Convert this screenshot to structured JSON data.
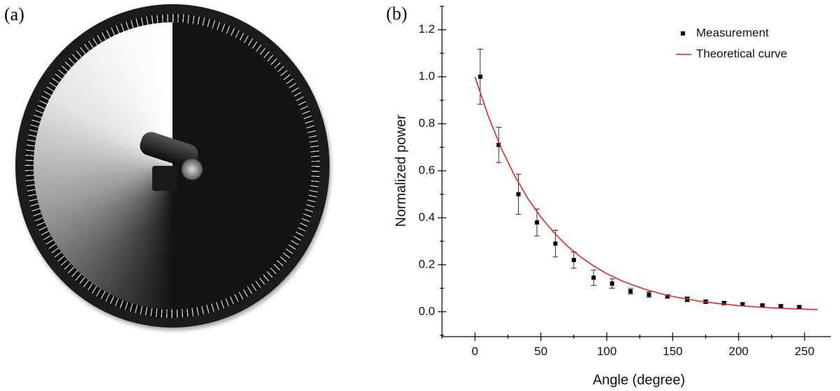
{
  "photo": {
    "label": "(a)"
  },
  "chart_data": {
    "type": "scatter",
    "panel_label": "(b)",
    "x_label": "Angle (degree)",
    "y_label": "Normalized power",
    "xlim": [
      -25,
      270
    ],
    "ylim": [
      -0.1,
      1.3
    ],
    "xticks": [
      0,
      50,
      100,
      150,
      200,
      250
    ],
    "xminorticks": [
      -25,
      25,
      75,
      125,
      175,
      225
    ],
    "yticks": [
      {
        "value": 0,
        "label": "0.0"
      },
      0.2,
      0.4,
      0.6,
      0.8,
      {
        "value": 1,
        "label": "1.0"
      },
      1.2
    ],
    "yminorticks": [
      -0.1,
      0.1,
      0.3,
      0.5,
      0.7,
      0.9,
      1.1,
      1.3
    ],
    "legend": "upper right",
    "series": [
      {
        "name": "Measurement",
        "type": "scatter",
        "color": "#000000",
        "x": [
          4,
          18,
          33,
          47,
          61,
          75,
          90,
          104,
          118,
          132,
          146,
          161,
          175,
          189,
          203,
          218,
          232,
          246
        ],
        "values": [
          1.0,
          0.71,
          0.5,
          0.38,
          0.29,
          0.22,
          0.145,
          0.12,
          0.087,
          0.073,
          0.065,
          0.053,
          0.043,
          0.037,
          0.032,
          0.027,
          0.024,
          0.02
        ],
        "errors": [
          0.117,
          0.075,
          0.085,
          0.057,
          0.057,
          0.035,
          0.033,
          0.02,
          0.012,
          0.012,
          0.007,
          0.01,
          0.008,
          0.007,
          0.006,
          0.005,
          0.005,
          0.005
        ]
      },
      {
        "name": "Theoretical curve",
        "type": "line",
        "color": "#e8231f",
        "x": [
          0,
          10,
          20,
          30,
          40,
          50,
          60,
          70,
          80,
          90,
          100,
          110,
          120,
          130,
          140,
          150,
          160,
          170,
          180,
          190,
          200,
          210,
          220,
          230,
          240,
          250,
          260
        ],
        "values": [
          1.0,
          0.834,
          0.695,
          0.58,
          0.483,
          0.403,
          0.336,
          0.28,
          0.234,
          0.195,
          0.162,
          0.135,
          0.113,
          0.094,
          0.078,
          0.065,
          0.055,
          0.045,
          0.038,
          0.032,
          0.026,
          0.022,
          0.018,
          0.015,
          0.013,
          0.011,
          0.009
        ]
      }
    ]
  }
}
